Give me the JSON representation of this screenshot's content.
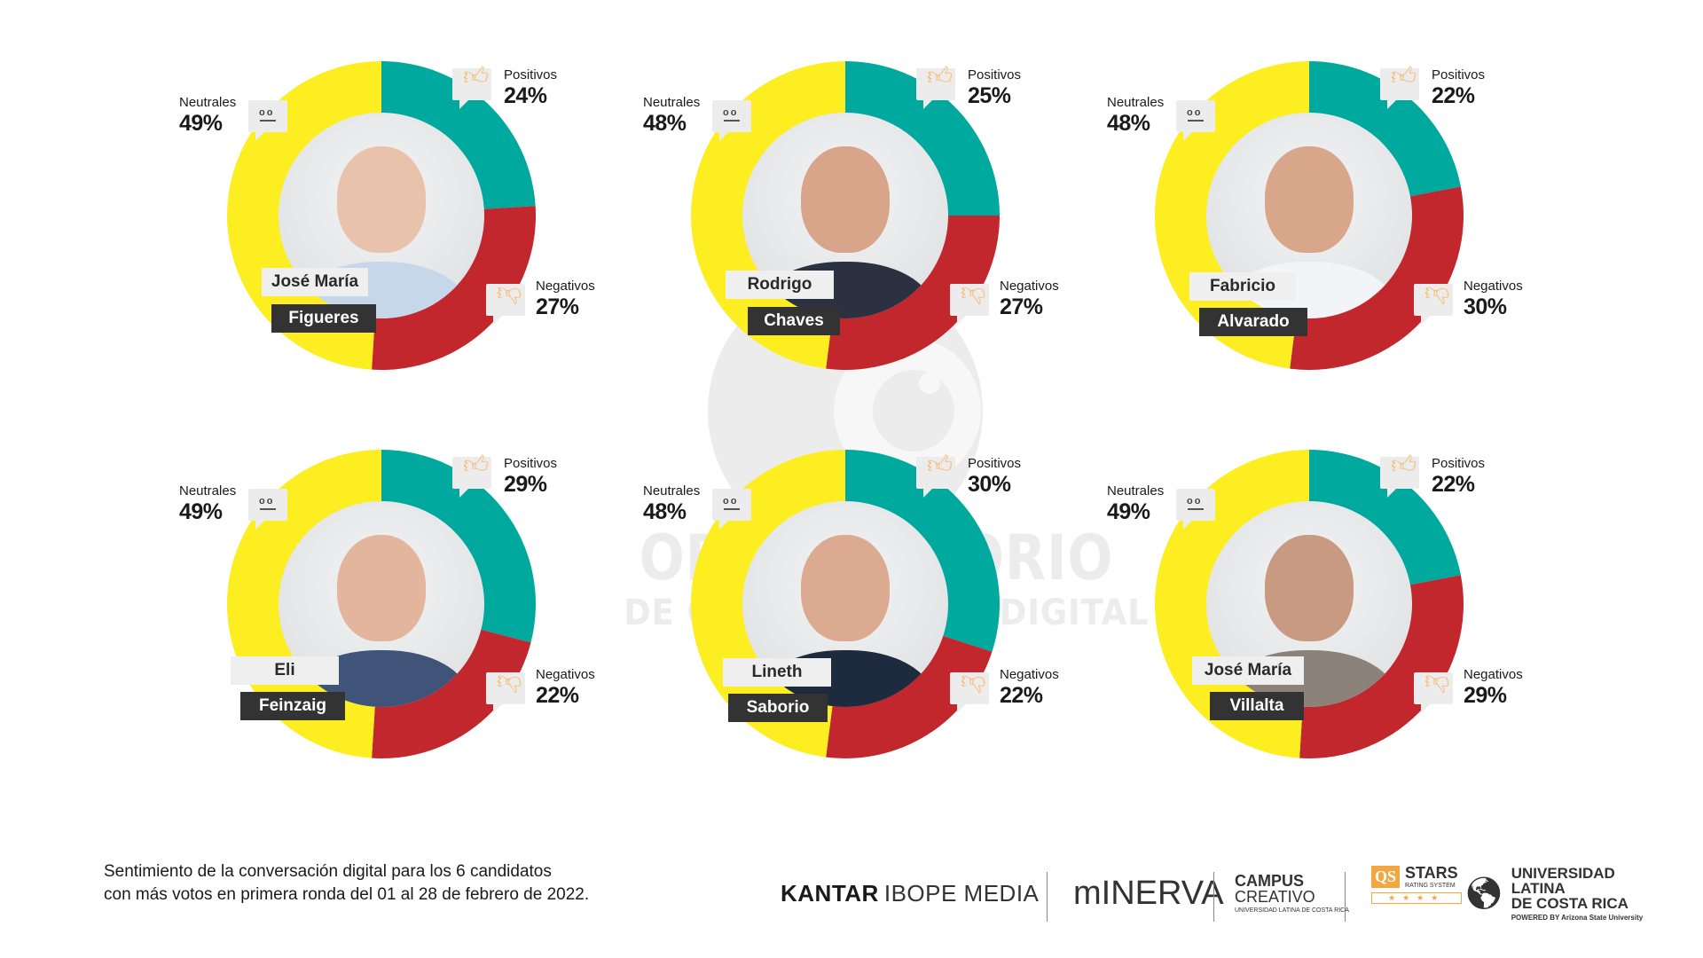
{
  "colors": {
    "positive": "#00a99d",
    "negative": "#c1272d",
    "neutral": "#fcee21",
    "watermark": "#ececec"
  },
  "labels": {
    "positive": "Positivos",
    "negative": "Negativos",
    "neutral": "Neutrales"
  },
  "icons": {
    "positive": "thumbs-up-icon",
    "negative": "thumbs-down-icon",
    "neutral": "neutral-face-icon"
  },
  "watermark": {
    "line1": "OBSERVATORIO",
    "line2": "DE COMUNICACIÓN DIGITAL"
  },
  "chart_data": [
    {
      "type": "pie",
      "title": "José María Figueres",
      "first_name": "José María",
      "last_name": "Figueres",
      "categories": [
        "Positivos",
        "Negativos",
        "Neutrales"
      ],
      "values": [
        24,
        27,
        49
      ],
      "value_labels": [
        "24%",
        "27%",
        "49%"
      ]
    },
    {
      "type": "pie",
      "title": "Rodrigo Chaves",
      "first_name": "Rodrigo",
      "last_name": "Chaves",
      "categories": [
        "Positivos",
        "Negativos",
        "Neutrales"
      ],
      "values": [
        25,
        27,
        48
      ],
      "value_labels": [
        "25%",
        "27%",
        "48%"
      ]
    },
    {
      "type": "pie",
      "title": "Fabricio Alvarado",
      "first_name": "Fabricio",
      "last_name": "Alvarado",
      "categories": [
        "Positivos",
        "Negativos",
        "Neutrales"
      ],
      "values": [
        22,
        30,
        48
      ],
      "value_labels": [
        "22%",
        "30%",
        "48%"
      ]
    },
    {
      "type": "pie",
      "title": "Eli Feinzaig",
      "first_name": "Eli",
      "last_name": "Feinzaig",
      "categories": [
        "Positivos",
        "Negativos",
        "Neutrales"
      ],
      "values": [
        29,
        22,
        49
      ],
      "value_labels": [
        "29%",
        "22%",
        "49%"
      ]
    },
    {
      "type": "pie",
      "title": "Lineth Saborio",
      "first_name": "Lineth",
      "last_name": "Saborio",
      "categories": [
        "Positivos",
        "Negativos",
        "Neutrales"
      ],
      "values": [
        30,
        22,
        48
      ],
      "value_labels": [
        "30%",
        "22%",
        "48%"
      ]
    },
    {
      "type": "pie",
      "title": "José María Villalta",
      "first_name": "José María",
      "last_name": "Villalta",
      "categories": [
        "Positivos",
        "Negativos",
        "Neutrales"
      ],
      "values": [
        22,
        29,
        49
      ],
      "value_labels": [
        "22%",
        "29%",
        "49%"
      ]
    }
  ],
  "caption": {
    "line1": "Sentimiento de la conversación digital para los 6 candidatos",
    "line2": "con más votos en primera ronda del 01 al 28 de febrero de 2022."
  },
  "logos": {
    "kantar_bold": "KANTAR",
    "kantar_light": "IBOPE MEDIA",
    "minerva": "mINERVA",
    "campus_line1": "CAMPUS",
    "campus_line2": "CREATIVO",
    "campus_sub": "UNIVERSIDAD LATINA DE COSTA RICA",
    "qs_badge": "QS",
    "qs_stars": "STARS",
    "qs_rating": "RATING SYSTEM",
    "qs_star_glyphs": "★★★★",
    "ulatina_line1": "UNIVERSIDAD LATINA",
    "ulatina_line2": "DE COSTA RICA",
    "ulatina_powered": "POWERED BY Arizona State University"
  }
}
